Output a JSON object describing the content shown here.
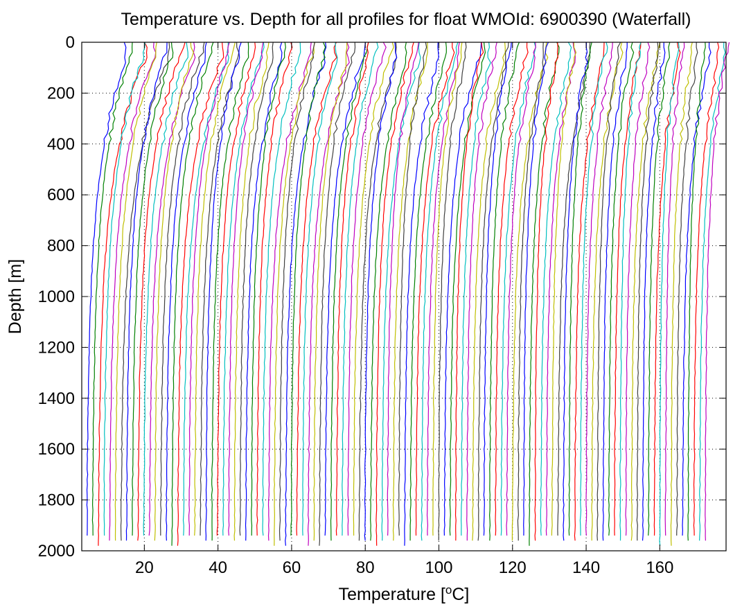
{
  "chart_data": {
    "type": "line",
    "title": "Temperature vs. Depth for all profiles for float WMOId: 6900390 (Waterfall)",
    "xlabel_main": "Temperature [",
    "xlabel_sup": "o",
    "xlabel_end": "C]",
    "ylabel": "Depth [m]",
    "xlim": [
      3,
      178
    ],
    "ylim": [
      2000,
      0
    ],
    "y_reversed": true,
    "xticks": [
      20,
      40,
      60,
      80,
      100,
      120,
      140,
      160
    ],
    "xtick_labels": [
      "20",
      "40",
      "60",
      "80",
      "100",
      "120",
      "140",
      "160"
    ],
    "yticks": [
      0,
      200,
      400,
      600,
      800,
      1000,
      1200,
      1400,
      1600,
      1800,
      2000
    ],
    "ytick_labels": [
      "0",
      "200",
      "400",
      "600",
      "800",
      "1000",
      "1200",
      "1400",
      "1600",
      "1800",
      "2000"
    ],
    "grid": true,
    "waterfall": {
      "profile_count": 110,
      "first_profile_surface_temperature": 16,
      "first_profile_bottom_temperature": 4,
      "last_profile_surface_temperature": 178,
      "last_profile_bottom_temperature": 172,
      "offset_per_profile": 1.5,
      "color_cycle": [
        "#0000ff",
        "#008000",
        "#ff0000",
        "#00bfbf",
        "#bf00bf",
        "#bfbf00",
        "#404040"
      ]
    }
  }
}
